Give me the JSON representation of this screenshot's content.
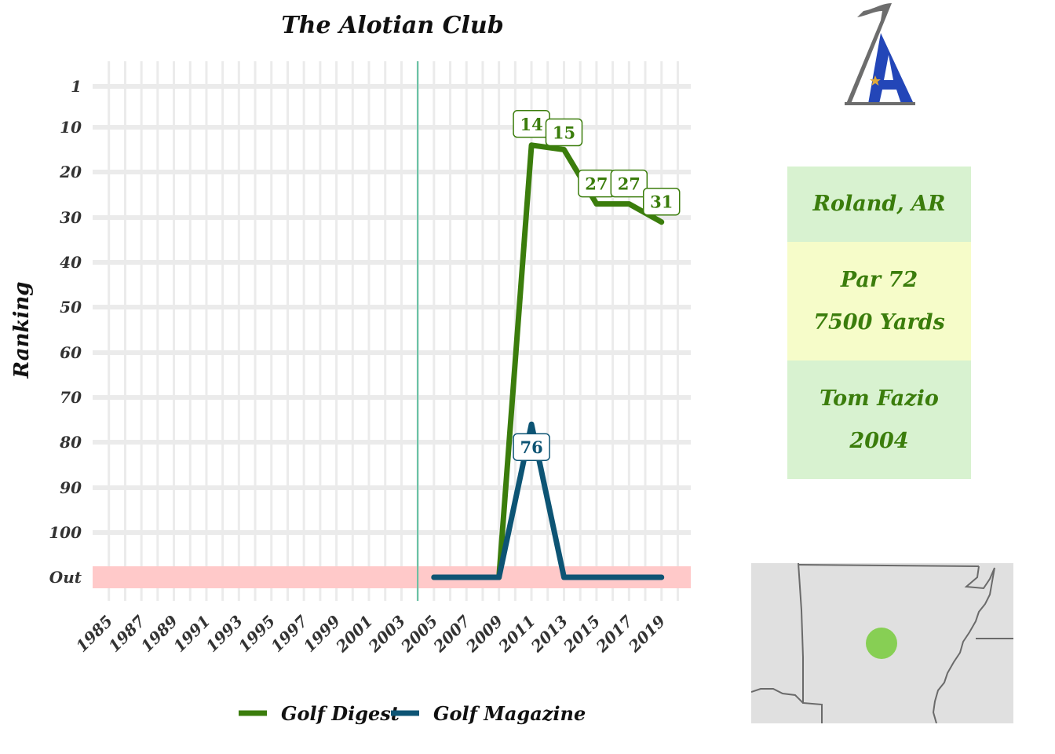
{
  "chart_data": {
    "type": "line",
    "title": "The Alotian Club",
    "ylabel": "Ranking",
    "xlabel": "",
    "x_ticks": [
      "1985",
      "1987",
      "1989",
      "1991",
      "1993",
      "1995",
      "1997",
      "1999",
      "2001",
      "2003",
      "2005",
      "2007",
      "2009",
      "2011",
      "2013",
      "2015",
      "2017",
      "2019"
    ],
    "xlim": [
      1984,
      2020.8
    ],
    "y_ticks": [
      "1",
      "10",
      "20",
      "30",
      "40",
      "50",
      "60",
      "70",
      "80",
      "90",
      "100",
      "Out"
    ],
    "y_tick_values": [
      1,
      10,
      20,
      30,
      40,
      50,
      60,
      70,
      80,
      90,
      100,
      110
    ],
    "ylim": [
      110,
      1
    ],
    "y_reversed": true,
    "out_value": 110,
    "out_band_color": "#ffc9c9",
    "opened_year": 2004,
    "opened_line_color": "#5fbf9f",
    "grid": true,
    "legend_position": "bottom",
    "series": [
      {
        "name": "Golf Digest",
        "color": "#3b7d0c",
        "x": [
          2005,
          2007,
          2009,
          2011,
          2013,
          2015,
          2017,
          2019
        ],
        "values": [
          110,
          110,
          110,
          14,
          15,
          27,
          27,
          31
        ],
        "data_labels": [
          {
            "x": 2011,
            "y": 14,
            "text": "14"
          },
          {
            "x": 2013,
            "y": 15,
            "text": "15"
          },
          {
            "x": 2015,
            "y": 27,
            "text": "27"
          },
          {
            "x": 2017,
            "y": 27,
            "text": "27"
          },
          {
            "x": 2019,
            "y": 31,
            "text": "31"
          }
        ]
      },
      {
        "name": "Golf Magazine",
        "color": "#0d5474",
        "x": [
          2005,
          2007,
          2009,
          2011,
          2013,
          2015,
          2017,
          2019
        ],
        "values": [
          110,
          110,
          110,
          76,
          110,
          110,
          110,
          110
        ],
        "data_labels": [
          {
            "x": 2011,
            "y": 76,
            "text": "76"
          }
        ]
      }
    ]
  },
  "info": {
    "location": "Roland, AR",
    "par": "Par 72",
    "yards": "7500 Yards",
    "architect": "Tom Fazio",
    "year": "2004"
  },
  "logo": {
    "flag_color": "#6d6d6d",
    "letter_color": "#2346b8",
    "star_color": "#e0a93a"
  },
  "map": {
    "background": "#e0e0e0",
    "border_color": "#6a6a6a",
    "marker_color": "#7dcd45"
  }
}
